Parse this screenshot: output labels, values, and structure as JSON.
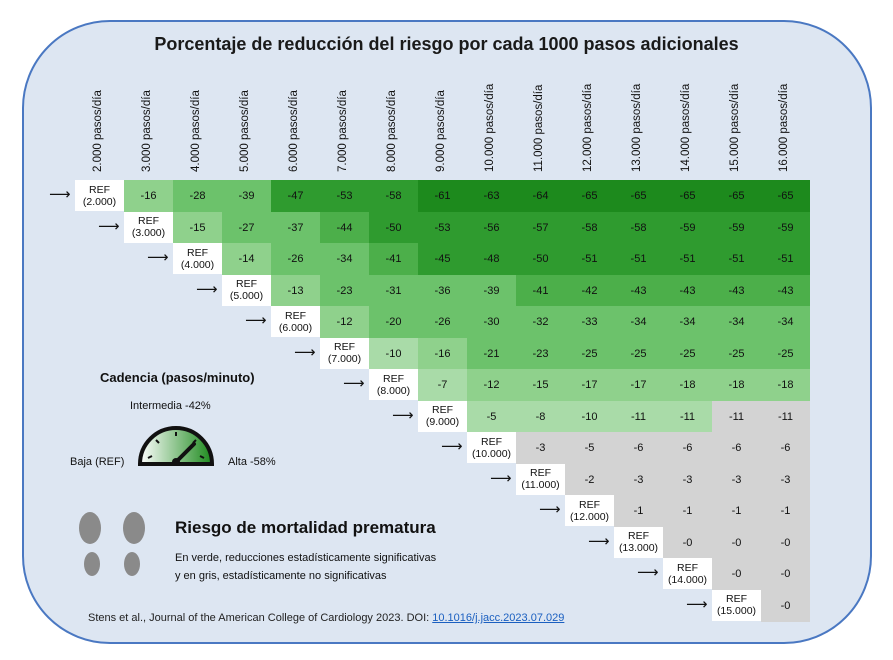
{
  "title": "Porcentaje de reducción del riesgo por cada 1000 pasos adicionales",
  "colors": {
    "background": "#dde6f2",
    "border": "#4a78c2",
    "green_shades": [
      "#a9dba8",
      "#8fd18c",
      "#6cc26b",
      "#4caf4a",
      "#2f9b2f",
      "#1d8a1d"
    ],
    "gray": "#d3d3d3"
  },
  "chart_data": {
    "type": "heatmap",
    "title": "Porcentaje de reducción del riesgo por cada 1000 pasos adicionales",
    "columns": [
      "2.000 pasos/día",
      "3.000 pasos/día",
      "4.000 pasos/día",
      "5.000 pasos/día",
      "6.000 pasos/día",
      "7.000 pasos/día",
      "8.000 pasos/día",
      "9.000 pasos/día",
      "10.000 pasos/día",
      "11.000 pasos/día",
      "12.000 pasos/día",
      "13.000 pasos/día",
      "14.000 pasos/día",
      "15.000 pasos/día",
      "16.000 pasos/día"
    ],
    "reference_label": "REF",
    "rows": [
      {
        "ref": "(2.000)",
        "values": [
          -16,
          -28,
          -39,
          -47,
          -53,
          -58,
          -61,
          -63,
          -64,
          -65,
          -65,
          -65,
          -65,
          -65
        ],
        "significant": 14
      },
      {
        "ref": "(3.000)",
        "values": [
          -15,
          -27,
          -37,
          -44,
          -50,
          -53,
          -56,
          -57,
          -58,
          -58,
          -59,
          -59,
          -59
        ],
        "significant": 13
      },
      {
        "ref": "(4.000)",
        "values": [
          -14,
          -26,
          -34,
          -41,
          -45,
          -48,
          -50,
          -51,
          -51,
          -51,
          -51,
          -51
        ],
        "significant": 12
      },
      {
        "ref": "(5.000)",
        "values": [
          -13,
          -23,
          -31,
          -36,
          -39,
          -41,
          -42,
          -43,
          -43,
          -43,
          -43
        ],
        "significant": 11
      },
      {
        "ref": "(6.000)",
        "values": [
          -12,
          -20,
          -26,
          -30,
          -32,
          -33,
          -34,
          -34,
          -34,
          -34
        ],
        "significant": 10
      },
      {
        "ref": "(7.000)",
        "values": [
          -10,
          -16,
          -21,
          -23,
          -25,
          -25,
          -25,
          -25,
          -25
        ],
        "significant": 9
      },
      {
        "ref": "(8.000)",
        "values": [
          -7,
          -12,
          -15,
          -17,
          -17,
          -18,
          -18,
          -18
        ],
        "significant": 8
      },
      {
        "ref": "(9.000)",
        "values": [
          -5,
          -8,
          -10,
          -11,
          -11,
          -11,
          -11
        ],
        "significant": 5
      },
      {
        "ref": "(10.000)",
        "values": [
          -3,
          -5,
          -6,
          -6,
          -6,
          -6
        ],
        "significant": 0
      },
      {
        "ref": "(11.000)",
        "values": [
          -2,
          -3,
          -3,
          -3,
          -3
        ],
        "significant": 0
      },
      {
        "ref": "(12.000)",
        "values": [
          -1,
          -1,
          -1,
          -1
        ],
        "significant": 0
      },
      {
        "ref": "(13.000)",
        "values": [
          0,
          0,
          0
        ],
        "significant": 0
      },
      {
        "ref": "(14.000)",
        "values": [
          0,
          0
        ],
        "significant": 0
      },
      {
        "ref": "(15.000)",
        "values": [
          0
        ],
        "significant": 0
      }
    ]
  },
  "gauge": {
    "title": "Cadencia (pasos/minuto)",
    "mid_label": "Intermedia -42%",
    "low_label": "Baja (REF)",
    "high_label": "Alta -58%"
  },
  "legend": {
    "title": "Riesgo de mortalidad prematura",
    "line1": "En verde, reducciones estadísticamente significativas",
    "line2": "y en gris, estadísticamente no significativas"
  },
  "citation": {
    "text": "Stens et al., Journal of the American College of Cardiology 2023. DOI: ",
    "doi": "10.1016/j.jacc.2023.07.029"
  }
}
